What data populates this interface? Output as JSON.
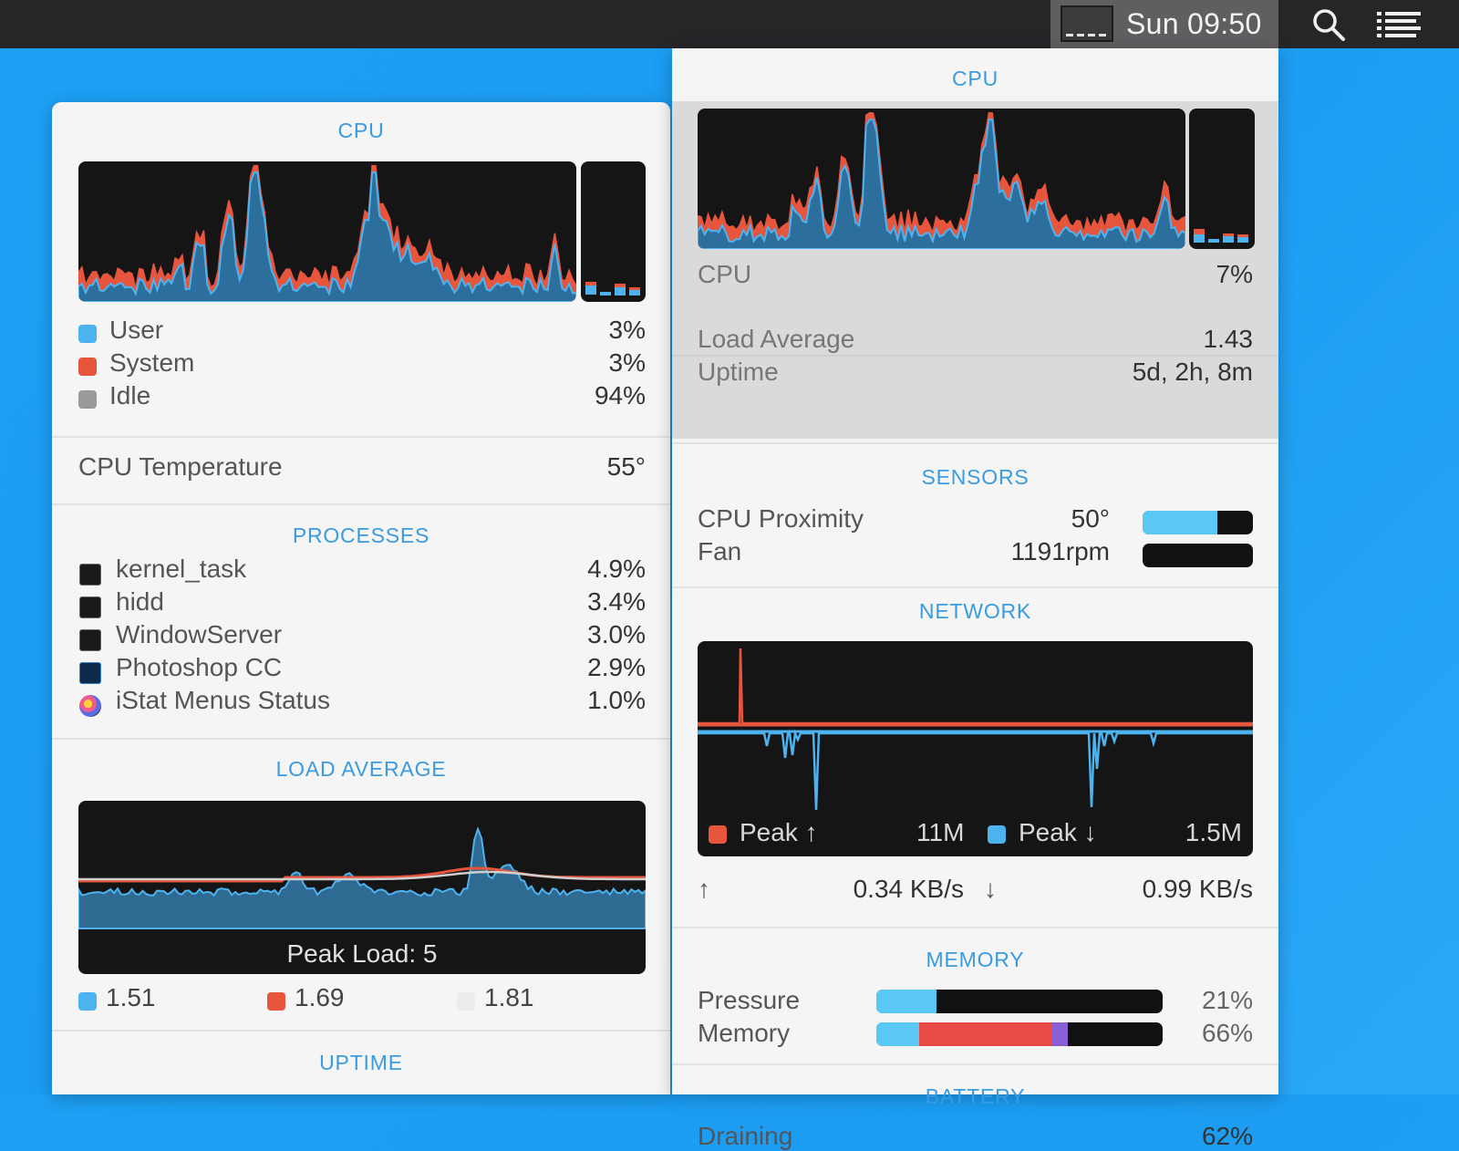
{
  "menubar": {
    "clock": "Sun 09:50",
    "icons": [
      "cpu-graph-icon",
      "search-icon",
      "list-icon"
    ]
  },
  "left": {
    "cpu": {
      "title": "CPU",
      "legend": [
        {
          "label": "User",
          "value": "3%",
          "color": "#4cb3f0"
        },
        {
          "label": "System",
          "value": "3%",
          "color": "#e8553d"
        },
        {
          "label": "Idle",
          "value": "94%",
          "color": "#9a9a9a"
        }
      ],
      "temp_label": "CPU Temperature",
      "temp_value": "55°"
    },
    "processes": {
      "title": "PROCESSES",
      "items": [
        {
          "name": "kernel_task",
          "value": "4.9%",
          "icon": "terminal-icon"
        },
        {
          "name": "hidd",
          "value": "3.4%",
          "icon": "terminal-icon"
        },
        {
          "name": "WindowServer",
          "value": "3.0%",
          "icon": "terminal-icon"
        },
        {
          "name": "Photoshop CC",
          "value": "2.9%",
          "icon": "photoshop-icon"
        },
        {
          "name": "iStat Menus Status",
          "value": "1.0%",
          "icon": "istat-icon"
        }
      ]
    },
    "load": {
      "title": "LOAD AVERAGE",
      "peak": "Peak Load: 5",
      "legend": [
        {
          "value": "1.51",
          "color": "#4cb3f0"
        },
        {
          "value": "1.69",
          "color": "#e8553d"
        },
        {
          "value": "1.81",
          "color": "#ececec"
        }
      ]
    },
    "uptime": {
      "title": "UPTIME"
    }
  },
  "right": {
    "cpu": {
      "title": "CPU",
      "label": "CPU",
      "value": "7%",
      "load_label": "Load Average",
      "load_value": "1.43",
      "uptime_label": "Uptime",
      "uptime_value": "5d, 2h, 8m"
    },
    "sensors": {
      "title": "SENSORS",
      "items": [
        {
          "label": "CPU Proximity",
          "value": "50°",
          "fill": 0.68
        },
        {
          "label": "Fan",
          "value": "1191rpm",
          "fill": 0
        }
      ]
    },
    "network": {
      "title": "NETWORK",
      "peak_up_label": "Peak ↑",
      "peak_up_value": "11M",
      "peak_down_label": "Peak ↓",
      "peak_down_value": "1.5M",
      "up_arrow": "↑",
      "up_rate": "0.34 KB/s",
      "down_arrow": "↓",
      "down_rate": "0.99 KB/s"
    },
    "memory": {
      "title": "MEMORY",
      "pressure_label": "Pressure",
      "pressure_value": "21%",
      "memory_label": "Memory",
      "memory_value": "66%",
      "pressure_fill": 0.21,
      "memory_segments": [
        {
          "name": "wired",
          "fill": 0.15,
          "color": "#5ac8f5"
        },
        {
          "name": "app",
          "fill": 0.46,
          "color": "#e84a45"
        },
        {
          "name": "compressed",
          "fill": 0.06,
          "color": "#8a5fd6"
        }
      ]
    },
    "battery": {
      "title": "BATTERY",
      "label": "Draining",
      "value": "62%"
    }
  },
  "colors": {
    "accent": "#3a9be0",
    "user": "#4cb3f0",
    "system": "#e8553d",
    "graph_bg": "#151515"
  }
}
